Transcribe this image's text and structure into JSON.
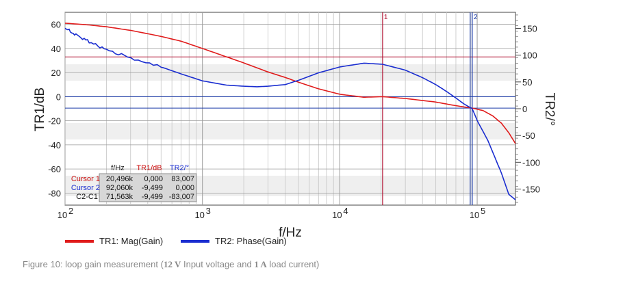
{
  "chart_data": {
    "type": "line",
    "xlabel": "f/Hz",
    "ylabel_left": "TR1/dB",
    "ylabel_right": "TR2/°",
    "x_scale": "log",
    "xlim": [
      100,
      190000
    ],
    "ylim_left": [
      -90,
      70
    ],
    "ylim_right": [
      -180,
      180
    ],
    "x_ticks": [
      {
        "base": "10",
        "exp": "2",
        "value": 100
      },
      {
        "base": "10",
        "exp": "3",
        "value": 1000
      },
      {
        "base": "10",
        "exp": "4",
        "value": 10000
      },
      {
        "base": "10",
        "exp": "5",
        "value": 100000
      }
    ],
    "y_ticks_left": [
      "60",
      "40",
      "20",
      "0",
      "-20",
      "-40",
      "-60",
      "-80"
    ],
    "y_ticks_right": [
      "150",
      "100",
      "50",
      "0",
      "-50",
      "-100",
      "-150"
    ],
    "grid": true,
    "colors": {
      "tr1": "#e01b1b",
      "tr2": "#1a2dd0",
      "cursor1": "#b01030",
      "cursor2": "#1a3aa8",
      "hline_red": "#b01030",
      "hline_blue": "#1a3aa8"
    },
    "series": [
      {
        "name": "TR1: Mag(Gain)",
        "axis": "left",
        "color": "#e01b1b",
        "x": [
          100,
          150,
          200,
          300,
          500,
          700,
          1000,
          1500,
          2000,
          3000,
          4000,
          5000,
          7000,
          10000,
          15000,
          20496,
          30000,
          50000,
          70000,
          92060,
          110000,
          130000,
          150000,
          170000,
          190000
        ],
        "y": [
          61,
          59.5,
          58,
          55,
          50,
          46,
          40,
          33,
          28,
          20.5,
          16,
          12,
          6.5,
          2,
          -0.5,
          0,
          -1.5,
          -4.5,
          -7.5,
          -9.5,
          -11.5,
          -16,
          -22,
          -30,
          -39
        ]
      },
      {
        "name": "TR2: Phase(Gain)",
        "axis": "right",
        "color": "#1a2dd0",
        "x": [
          100,
          120,
          150,
          200,
          300,
          500,
          700,
          1000,
          1500,
          2000,
          2500,
          3000,
          4000,
          5000,
          7000,
          10000,
          15000,
          20496,
          30000,
          40000,
          50000,
          60000,
          70000,
          80000,
          92060,
          100000,
          120000,
          150000,
          170000,
          190000
        ],
        "y": [
          150,
          138,
          125,
          110,
          95,
          78,
          65,
          52,
          44,
          42,
          41,
          42,
          45,
          53,
          67,
          78,
          85,
          83,
          72,
          58,
          45,
          32,
          20,
          9,
          0,
          -22,
          -60,
          -120,
          -160,
          -170
        ]
      }
    ],
    "cursors": [
      {
        "label": "1",
        "x": 20496
      },
      {
        "label": "2",
        "x": 92060
      }
    ],
    "cursor_table": {
      "headers": [
        "f/Hz",
        "TR1/dB",
        "TR2/°"
      ],
      "rows": [
        {
          "name": "Cursor 1",
          "f": "20,496k",
          "tr1": "0,000",
          "tr2": "83,007"
        },
        {
          "name": "Cursor 2",
          "f": "92,060k",
          "tr1": "-9,499",
          "tr2": "0,000"
        },
        {
          "name": "C2-C1",
          "f": "71,563k",
          "tr1": "-9,499",
          "tr2": "-83,007"
        }
      ]
    },
    "legend": {
      "placement": "bottom-left"
    }
  },
  "caption": {
    "prefix": "Figure 10: loop gain measurement (",
    "v": "12 V",
    "mid": " Input voltage and ",
    "a": "1 A",
    "suffix": " load current)"
  }
}
